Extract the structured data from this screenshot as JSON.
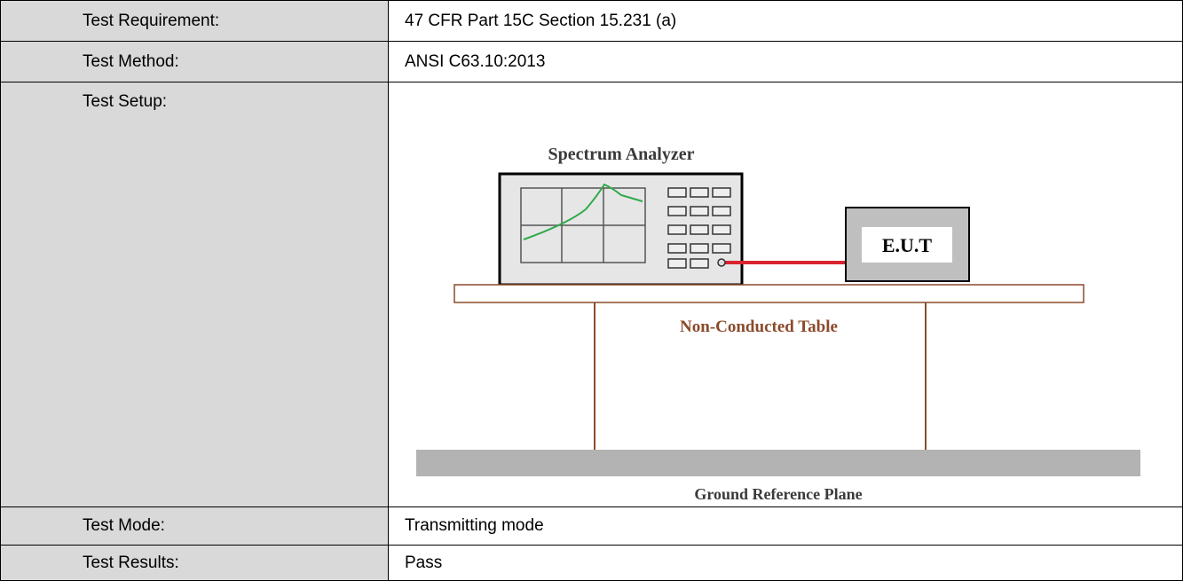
{
  "table": {
    "rows": [
      [
        "Test Requirement:",
        "47 CFR Part 15C Section 15.231 (a)"
      ],
      [
        "Test Method:",
        "ANSI C63.10:2013"
      ],
      [
        "Test Setup:"
      ],
      [
        "Test Mode:",
        "Transmitting mode"
      ],
      [
        "Test Results:",
        "Pass"
      ]
    ]
  },
  "diagram": {
    "analyzer": "Spectrum Analyzer",
    "eut": "E.U.T",
    "table": "Non-Conducted Table",
    "ground": "Ground Reference Plane"
  }
}
